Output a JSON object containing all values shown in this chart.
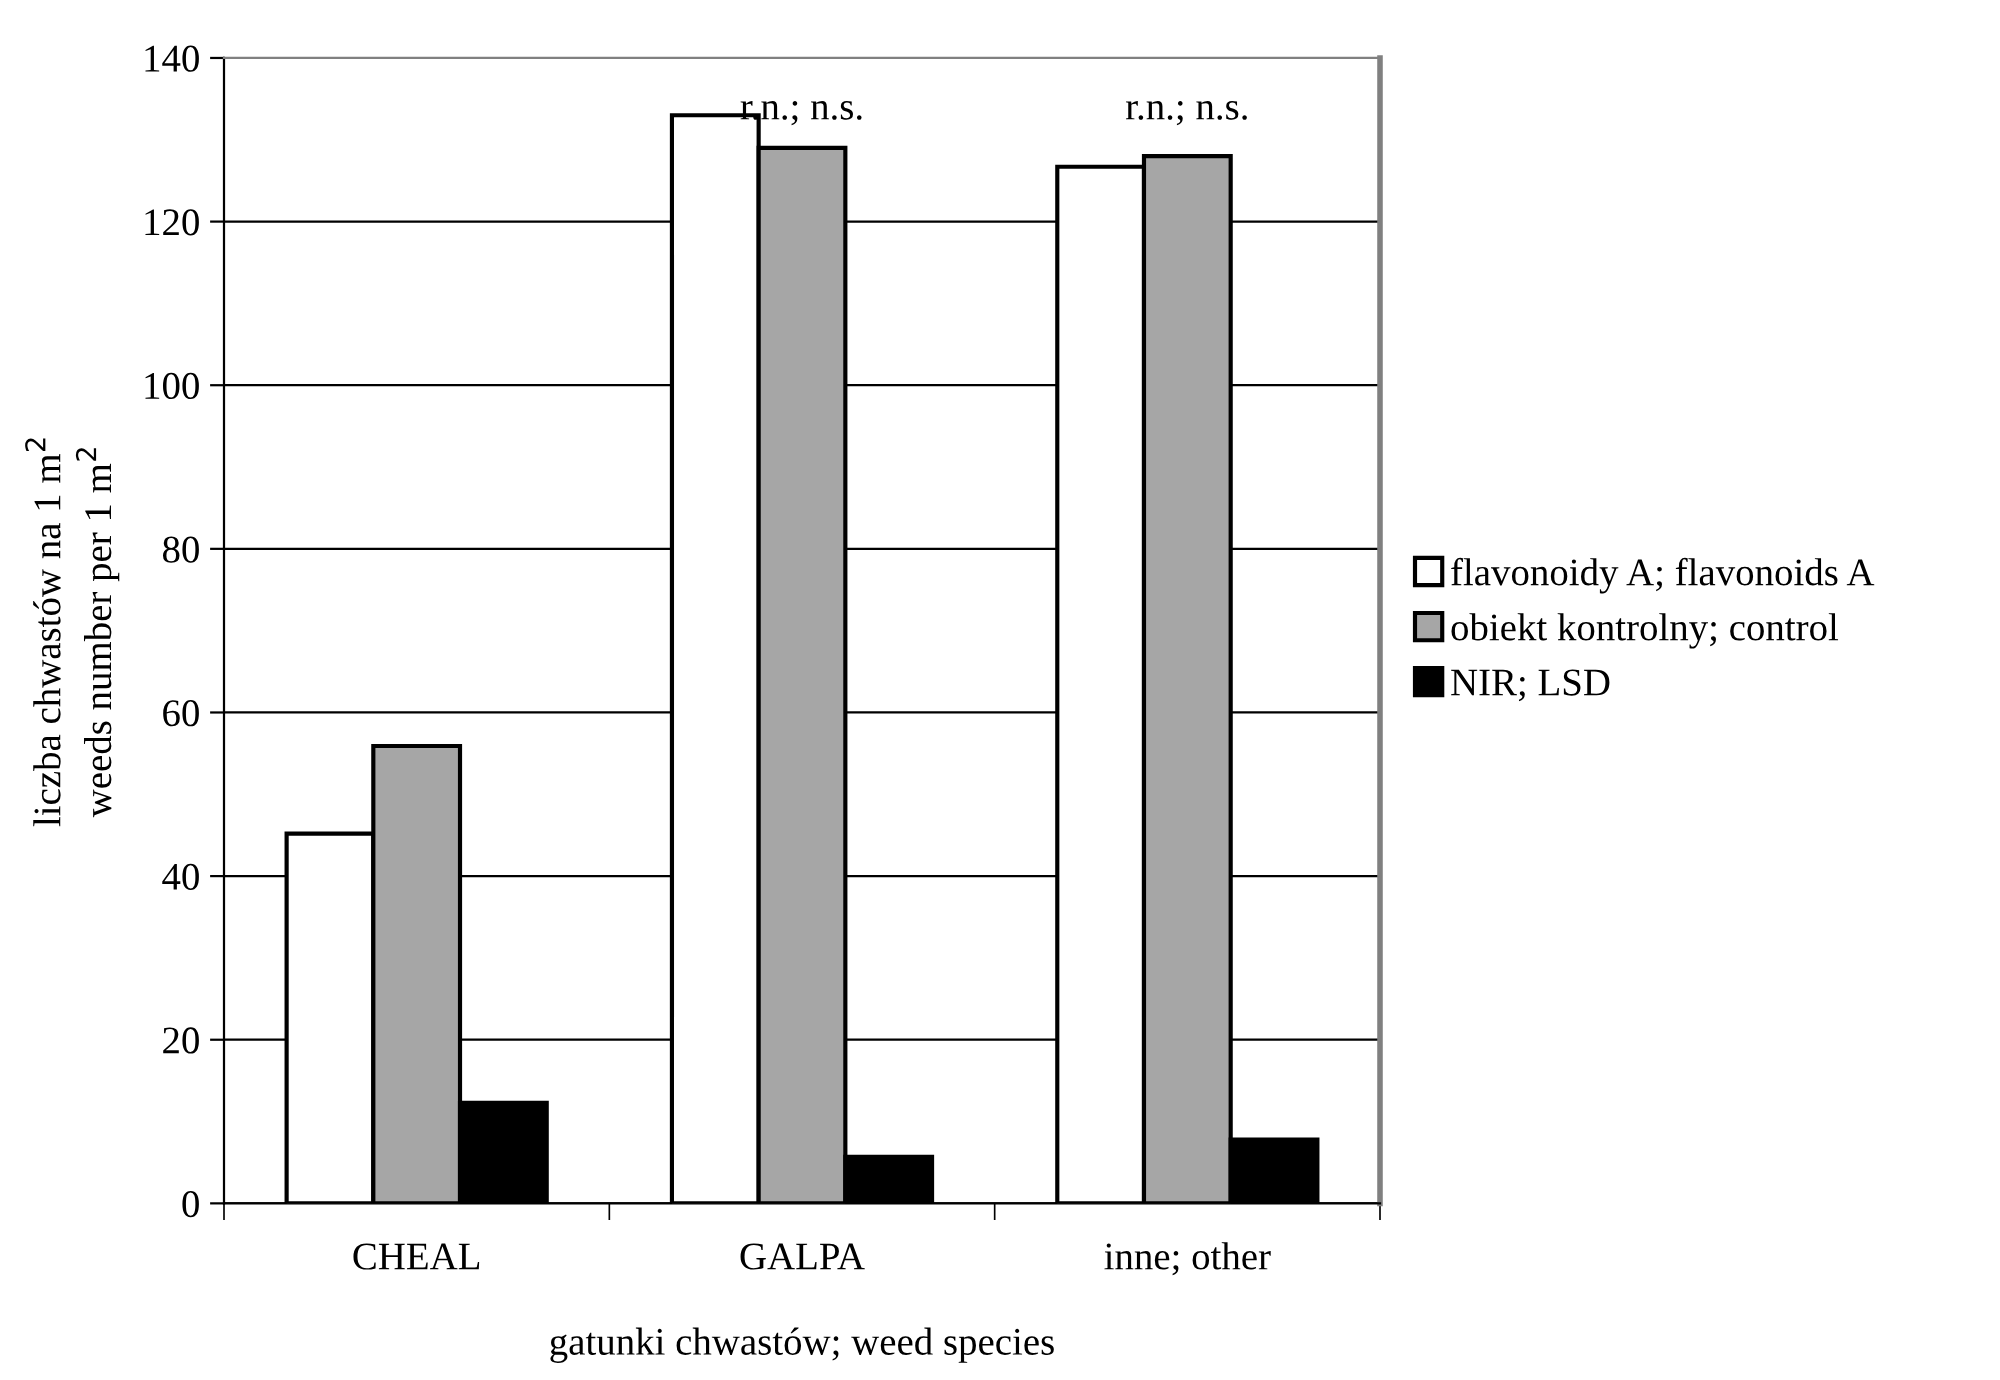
{
  "chart_data": {
    "type": "bar",
    "categories": [
      "CHEAL",
      "GALPA",
      "inne; other"
    ],
    "series": [
      {
        "name": "flavonoidy A; flavonoids A",
        "color": "#ffffff",
        "values": [
          45.2,
          133,
          126.7
        ]
      },
      {
        "name": "obiekt kontrolny; control",
        "color": "#a6a6a6",
        "values": [
          55.9,
          129,
          128
        ]
      },
      {
        "name": "NIR; LSD",
        "color": "#000000",
        "values": [
          12.3,
          5.7,
          7.8
        ]
      }
    ],
    "xlabel": "gatunki chwastów; weed species",
    "ylabel": "liczba chwastów na 1 m$^{2}$\nweeds number per 1 m$^{2}$",
    "ylim": [
      0,
      140
    ],
    "yticks": [
      0,
      20,
      40,
      60,
      80,
      100,
      120,
      140
    ],
    "grid": "y",
    "legend": "right",
    "annotations": [
      "r.n.; n.s.",
      "r.n.; n.s."
    ]
  }
}
